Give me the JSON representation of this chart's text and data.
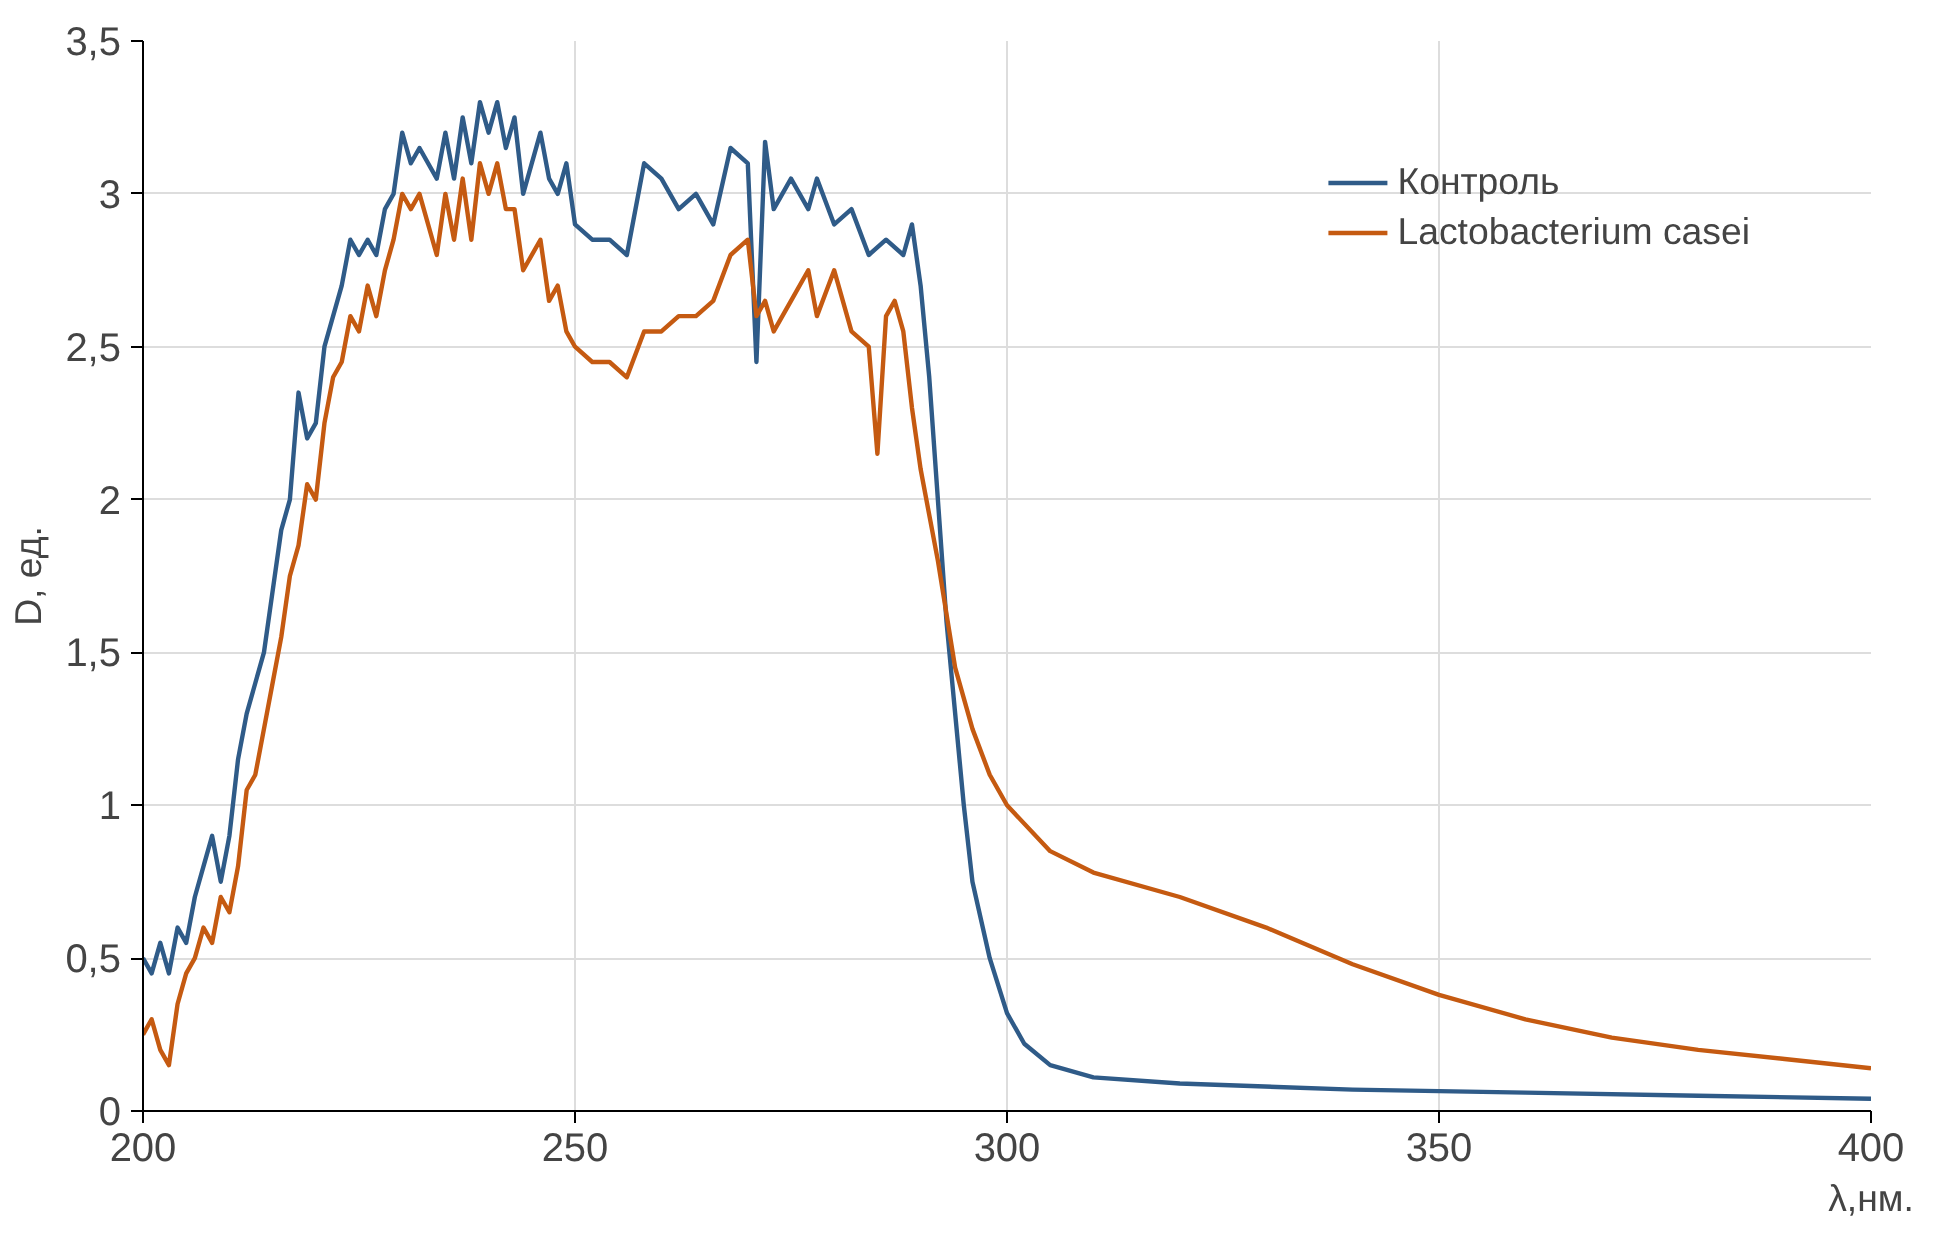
{
  "chart_data": {
    "type": "line",
    "xlabel": "λ,нм.",
    "ylabel": "D, ед.",
    "xlim": [
      200,
      400
    ],
    "xticks": [
      200,
      250,
      300,
      350,
      400
    ],
    "ylim": [
      0,
      3.5
    ],
    "yticks": [
      0,
      {
        "value": 0.5,
        "label": "0,5"
      },
      1,
      {
        "value": 1.5,
        "label": "1,5"
      },
      2,
      {
        "value": 2.5,
        "label": "2,5"
      },
      3,
      {
        "value": 3.5,
        "label": "3,5"
      }
    ],
    "grid": true,
    "legend": "top right",
    "line_style": "solid",
    "marker": "none",
    "series": [
      {
        "name": "Контроль",
        "color": "#2f5b88",
        "x": [
          200,
          201,
          202,
          203,
          204,
          205,
          206,
          207,
          208,
          209,
          210,
          211,
          212,
          213,
          214,
          215,
          216,
          217,
          218,
          219,
          220,
          221,
          222,
          223,
          224,
          225,
          226,
          227,
          228,
          229,
          230,
          231,
          232,
          234,
          235,
          236,
          237,
          238,
          239,
          240,
          241,
          242,
          243,
          244,
          246,
          247,
          248,
          249,
          250,
          252,
          254,
          256,
          258,
          260,
          262,
          264,
          266,
          268,
          270,
          271,
          272,
          273,
          275,
          277,
          278,
          280,
          282,
          284,
          286,
          288,
          289,
          290,
          291,
          292,
          293,
          294,
          295,
          296,
          298,
          300,
          302,
          305,
          310,
          320,
          340,
          360,
          380,
          400
        ],
        "values": [
          0.5,
          0.45,
          0.55,
          0.45,
          0.6,
          0.55,
          0.7,
          0.8,
          0.9,
          0.75,
          0.9,
          1.15,
          1.3,
          1.4,
          1.5,
          1.7,
          1.9,
          2.0,
          2.35,
          2.2,
          2.25,
          2.5,
          2.6,
          2.7,
          2.85,
          2.8,
          2.85,
          2.8,
          2.95,
          3.0,
          3.2,
          3.1,
          3.15,
          3.05,
          3.2,
          3.05,
          3.25,
          3.1,
          3.3,
          3.2,
          3.3,
          3.15,
          3.25,
          3.0,
          3.2,
          3.05,
          3.0,
          3.1,
          2.9,
          2.85,
          2.85,
          2.8,
          3.1,
          3.05,
          2.95,
          3.0,
          2.9,
          3.15,
          3.1,
          2.45,
          3.17,
          2.95,
          3.05,
          2.95,
          3.05,
          2.9,
          2.95,
          2.8,
          2.85,
          2.8,
          2.9,
          2.7,
          2.4,
          2.0,
          1.6,
          1.3,
          1.0,
          0.75,
          0.5,
          0.32,
          0.22,
          0.15,
          0.11,
          0.09,
          0.07,
          0.06,
          0.05,
          0.04
        ]
      },
      {
        "name": "Lactobacterium casei",
        "color": "#c55a11",
        "x": [
          200,
          201,
          202,
          203,
          204,
          205,
          206,
          207,
          208,
          209,
          210,
          211,
          212,
          213,
          214,
          215,
          216,
          217,
          218,
          219,
          220,
          221,
          222,
          223,
          224,
          225,
          226,
          227,
          228,
          229,
          230,
          231,
          232,
          234,
          235,
          236,
          237,
          238,
          239,
          240,
          241,
          242,
          243,
          244,
          246,
          247,
          248,
          249,
          250,
          252,
          254,
          256,
          258,
          260,
          262,
          264,
          266,
          268,
          270,
          271,
          272,
          273,
          275,
          277,
          278,
          280,
          282,
          284,
          285,
          286,
          287,
          288,
          289,
          290,
          292,
          294,
          296,
          298,
          300,
          305,
          310,
          320,
          330,
          340,
          350,
          360,
          370,
          380,
          390,
          400
        ],
        "values": [
          0.25,
          0.3,
          0.2,
          0.15,
          0.35,
          0.45,
          0.5,
          0.6,
          0.55,
          0.7,
          0.65,
          0.8,
          1.05,
          1.1,
          1.25,
          1.4,
          1.55,
          1.75,
          1.85,
          2.05,
          2.0,
          2.25,
          2.4,
          2.45,
          2.6,
          2.55,
          2.7,
          2.6,
          2.75,
          2.85,
          3.0,
          2.95,
          3.0,
          2.8,
          3.0,
          2.85,
          3.05,
          2.85,
          3.1,
          3.0,
          3.1,
          2.95,
          2.95,
          2.75,
          2.85,
          2.65,
          2.7,
          2.55,
          2.5,
          2.45,
          2.45,
          2.4,
          2.55,
          2.55,
          2.6,
          2.6,
          2.65,
          2.8,
          2.85,
          2.6,
          2.65,
          2.55,
          2.65,
          2.75,
          2.6,
          2.75,
          2.55,
          2.5,
          2.15,
          2.6,
          2.65,
          2.55,
          2.3,
          2.1,
          1.8,
          1.45,
          1.25,
          1.1,
          1.0,
          0.85,
          0.78,
          0.7,
          0.6,
          0.48,
          0.38,
          0.3,
          0.24,
          0.2,
          0.17,
          0.14
        ]
      }
    ]
  }
}
